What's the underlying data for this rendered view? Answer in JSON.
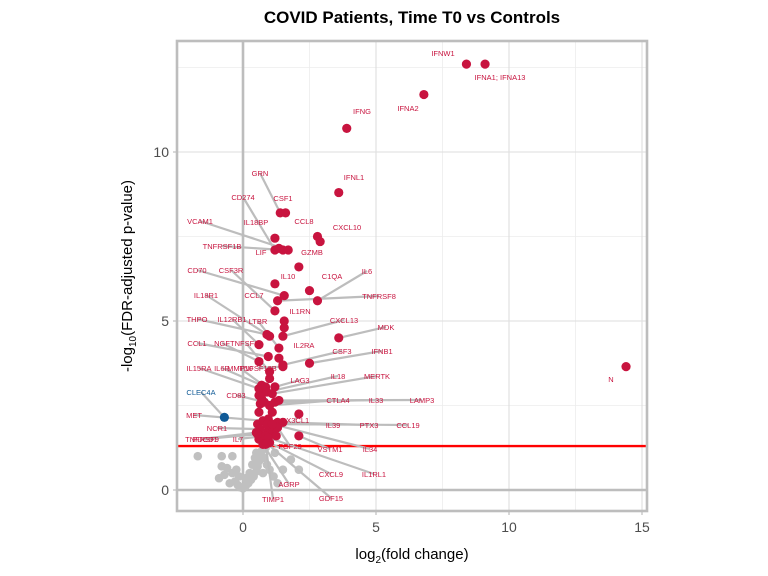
{
  "chart_data": {
    "type": "scatter",
    "subtype": "volcano",
    "title": "COVID Patients, Time T0 vs Controls",
    "xlabel": "log2(fold change)",
    "xlabel_parts": {
      "pre": "log",
      "sub": "2",
      "post": "(fold change)"
    },
    "ylabel": "-log10(FDR-adjusted p-value)",
    "ylabel_parts": {
      "pre": "-log",
      "sub": "10",
      "post": "(FDR-adjusted p-value)"
    },
    "xlim": [
      -2.5,
      15.2
    ],
    "ylim": [
      -0.6,
      13.3
    ],
    "x_ticks": [
      0,
      5,
      10,
      15
    ],
    "x_tick_labels": [
      "0",
      "5",
      "10",
      "15"
    ],
    "y_ticks": [
      0,
      5,
      10
    ],
    "y_tick_labels": [
      "0",
      "5",
      "10"
    ],
    "grid": true,
    "vertical_reference_line": 0,
    "significance_threshold": 1.3,
    "colors": {
      "up": "#c8143f",
      "down": "#105a96",
      "ns": "#c0c0c0",
      "threshold": "#ff0000",
      "connector": "#bdbdbd"
    },
    "labeled_points": [
      {
        "label": "IFNW1",
        "x": 8.4,
        "y": 12.6,
        "group": "up"
      },
      {
        "label": "IFNA1; IFNA13",
        "x": 9.1,
        "y": 12.6,
        "group": "up"
      },
      {
        "label": "IFNA2",
        "x": 6.8,
        "y": 11.7,
        "group": "up"
      },
      {
        "label": "IFNG",
        "x": 3.9,
        "y": 10.7,
        "group": "up"
      },
      {
        "label": "IFNL1",
        "x": 3.6,
        "y": 8.8,
        "group": "up"
      },
      {
        "label": "GRN",
        "x": 1.4,
        "y": 8.2,
        "group": "up"
      },
      {
        "label": "CSF1",
        "x": 1.6,
        "y": 8.2,
        "group": "up"
      },
      {
        "label": "CD274",
        "x": 1.2,
        "y": 7.1,
        "group": "up"
      },
      {
        "label": "CCL8",
        "x": 2.8,
        "y": 7.5,
        "group": "up"
      },
      {
        "label": "CXCL10",
        "x": 2.9,
        "y": 7.35,
        "group": "up"
      },
      {
        "label": "IL18BP",
        "x": 1.2,
        "y": 7.45,
        "group": "up"
      },
      {
        "label": "VCAM1",
        "x": 1.7,
        "y": 7.1,
        "group": "up"
      },
      {
        "label": "TNFRSF1B",
        "x": 1.5,
        "y": 7.1,
        "group": "up"
      },
      {
        "label": "LIF",
        "x": 1.35,
        "y": 7.15,
        "group": "up"
      },
      {
        "label": "GZMB",
        "x": 2.1,
        "y": 6.6,
        "group": "up"
      },
      {
        "label": "IL10",
        "x": 1.2,
        "y": 6.1,
        "group": "up"
      },
      {
        "label": "C1QA",
        "x": 2.5,
        "y": 5.9,
        "group": "up"
      },
      {
        "label": "IL6",
        "x": 2.8,
        "y": 5.6,
        "group": "up"
      },
      {
        "label": "CD70",
        "x": 1.55,
        "y": 5.75,
        "group": "up"
      },
      {
        "label": "CSF3R",
        "x": 1.2,
        "y": 5.3,
        "group": "up"
      },
      {
        "label": "TNFRSF8",
        "x": 1.3,
        "y": 5.6,
        "group": "up"
      },
      {
        "label": "IL18R1",
        "x": 1.0,
        "y": 4.55,
        "group": "up"
      },
      {
        "label": "CCL7",
        "x": 1.55,
        "y": 5.0,
        "group": "up"
      },
      {
        "label": "IL1RN",
        "x": 1.55,
        "y": 4.8,
        "group": "up"
      },
      {
        "label": "THPO",
        "x": 0.9,
        "y": 4.6,
        "group": "up"
      },
      {
        "label": "IL12RB1",
        "x": 0.6,
        "y": 4.3,
        "group": "up"
      },
      {
        "label": "LTBR",
        "x": 1.35,
        "y": 4.2,
        "group": "up"
      },
      {
        "label": "CXCL13",
        "x": 1.5,
        "y": 4.55,
        "group": "up"
      },
      {
        "label": "MDK",
        "x": 3.6,
        "y": 4.5,
        "group": "up"
      },
      {
        "label": "CCL1",
        "x": 0.95,
        "y": 3.95,
        "group": "up"
      },
      {
        "label": "NGF",
        "x": 0.6,
        "y": 3.8,
        "group": "up"
      },
      {
        "label": "TNFSF11",
        "x": 1.0,
        "y": 3.5,
        "group": "up"
      },
      {
        "label": "IL2RA",
        "x": 1.35,
        "y": 3.9,
        "group": "up"
      },
      {
        "label": "CSF3",
        "x": 1.5,
        "y": 3.7,
        "group": "up"
      },
      {
        "label": "IFNB1",
        "x": 2.5,
        "y": 3.75,
        "group": "up"
      },
      {
        "label": "IL15RA",
        "x": 0.6,
        "y": 3.0,
        "group": "up"
      },
      {
        "label": "IL6R",
        "x": 0.7,
        "y": 3.1,
        "group": "up"
      },
      {
        "label": "MMP10",
        "x": 0.85,
        "y": 3.05,
        "group": "up"
      },
      {
        "label": "TNFSF13B",
        "x": 1.5,
        "y": 3.65,
        "group": "up"
      },
      {
        "label": "LAG3",
        "x": 1.2,
        "y": 3.05,
        "group": "up"
      },
      {
        "label": "IL18",
        "x": 0.9,
        "y": 2.9,
        "group": "up"
      },
      {
        "label": "MERTK",
        "x": 1.1,
        "y": 2.85,
        "group": "up"
      },
      {
        "label": "CD83",
        "x": 0.8,
        "y": 2.6,
        "group": "up"
      },
      {
        "label": "CTLA4",
        "x": 1.0,
        "y": 2.5,
        "group": "up"
      },
      {
        "label": "IL33",
        "x": 1.2,
        "y": 2.6,
        "group": "up"
      },
      {
        "label": "LAMP3",
        "x": 1.35,
        "y": 2.65,
        "group": "up"
      },
      {
        "label": "CLEC4A",
        "x": -0.7,
        "y": 2.15,
        "group": "down"
      },
      {
        "label": "MET",
        "x": 0.75,
        "y": 2.05,
        "group": "up"
      },
      {
        "label": "CX3CL1",
        "x": 2.1,
        "y": 2.25,
        "group": "up"
      },
      {
        "label": "NCR1",
        "x": 0.65,
        "y": 1.8,
        "group": "up"
      },
      {
        "label": "IL39",
        "x": 1.3,
        "y": 2.0,
        "group": "up"
      },
      {
        "label": "PTX3",
        "x": 1.5,
        "y": 2.0,
        "group": "up"
      },
      {
        "label": "CCL19",
        "x": 0.9,
        "y": 1.95,
        "group": "up"
      },
      {
        "label": "TNFRSF9",
        "x": 0.5,
        "y": 1.7,
        "group": "up"
      },
      {
        "label": "PDCD1",
        "x": 0.55,
        "y": 1.65,
        "group": "up"
      },
      {
        "label": "IL7",
        "x": 0.85,
        "y": 1.6,
        "group": "up"
      },
      {
        "label": "FGF23",
        "x": 1.3,
        "y": 1.85,
        "group": "up"
      },
      {
        "label": "VSTM1",
        "x": 2.1,
        "y": 1.6,
        "group": "up"
      },
      {
        "label": "IL34",
        "x": 1.1,
        "y": 1.95,
        "group": "up"
      },
      {
        "label": "CXCL9",
        "x": 1.0,
        "y": 1.4,
        "group": "up"
      },
      {
        "label": "IL1RL1",
        "x": 0.95,
        "y": 1.55,
        "group": "up"
      },
      {
        "label": "AGRP",
        "x": 0.75,
        "y": 1.35,
        "group": "up"
      },
      {
        "label": "TIMP1",
        "x": 0.85,
        "y": 1.35,
        "group": "up"
      },
      {
        "label": "GDF15",
        "x": 0.9,
        "y": 1.38,
        "group": "up"
      },
      {
        "label": "N",
        "x": 14.4,
        "y": 3.65,
        "group": "up"
      }
    ],
    "extra_significant_points": [
      {
        "x": 0.6,
        "y": 2.3
      },
      {
        "x": 0.55,
        "y": 1.95
      },
      {
        "x": 0.7,
        "y": 2.7
      },
      {
        "x": 0.95,
        "y": 2.1
      },
      {
        "x": 1.15,
        "y": 1.7
      },
      {
        "x": 0.8,
        "y": 1.55
      },
      {
        "x": 0.6,
        "y": 1.5
      },
      {
        "x": 0.75,
        "y": 3.0
      },
      {
        "x": 1.0,
        "y": 3.3
      },
      {
        "x": 1.1,
        "y": 2.3
      },
      {
        "x": 0.65,
        "y": 2.55
      },
      {
        "x": 1.25,
        "y": 1.6
      },
      {
        "x": 0.95,
        "y": 1.75
      },
      {
        "x": 1.05,
        "y": 1.9
      },
      {
        "x": 0.6,
        "y": 2.8
      }
    ],
    "nonsignificant_points": [
      {
        "x": -1.7,
        "y": 1.0
      },
      {
        "x": -0.8,
        "y": 1.0
      },
      {
        "x": -0.4,
        "y": 1.0
      },
      {
        "x": -0.8,
        "y": 0.7
      },
      {
        "x": -0.6,
        "y": 0.65
      },
      {
        "x": -0.4,
        "y": 0.5
      },
      {
        "x": -0.9,
        "y": 0.35
      },
      {
        "x": -0.7,
        "y": 0.45
      },
      {
        "x": -0.3,
        "y": 0.25
      },
      {
        "x": -0.5,
        "y": 0.2
      },
      {
        "x": -0.2,
        "y": 0.15
      },
      {
        "x": -0.1,
        "y": 0.08
      },
      {
        "x": 0.0,
        "y": 0.05
      },
      {
        "x": 0.1,
        "y": 0.12
      },
      {
        "x": 0.2,
        "y": 0.2
      },
      {
        "x": 0.3,
        "y": 0.3
      },
      {
        "x": 0.4,
        "y": 0.4
      },
      {
        "x": 0.5,
        "y": 0.55
      },
      {
        "x": 0.55,
        "y": 0.7
      },
      {
        "x": 0.6,
        "y": 0.85
      },
      {
        "x": 0.65,
        "y": 1.0
      },
      {
        "x": 0.7,
        "y": 1.15
      },
      {
        "x": 0.5,
        "y": 1.1
      },
      {
        "x": 0.8,
        "y": 0.95
      },
      {
        "x": 0.9,
        "y": 0.75
      },
      {
        "x": 1.0,
        "y": 0.6
      },
      {
        "x": 1.15,
        "y": 0.4
      },
      {
        "x": 1.3,
        "y": 0.2
      },
      {
        "x": 0.35,
        "y": 0.75
      },
      {
        "x": 0.25,
        "y": 0.5
      },
      {
        "x": -0.15,
        "y": 0.4
      },
      {
        "x": 0.45,
        "y": 0.95
      },
      {
        "x": 0.75,
        "y": 0.5
      },
      {
        "x": 1.5,
        "y": 0.6
      },
      {
        "x": 1.8,
        "y": 0.9
      },
      {
        "x": 2.1,
        "y": 0.6
      },
      {
        "x": 1.2,
        "y": 1.1
      },
      {
        "x": 0.85,
        "y": 1.25
      },
      {
        "x": 0.1,
        "y": 0.35
      },
      {
        "x": -0.25,
        "y": 0.6
      }
    ]
  }
}
